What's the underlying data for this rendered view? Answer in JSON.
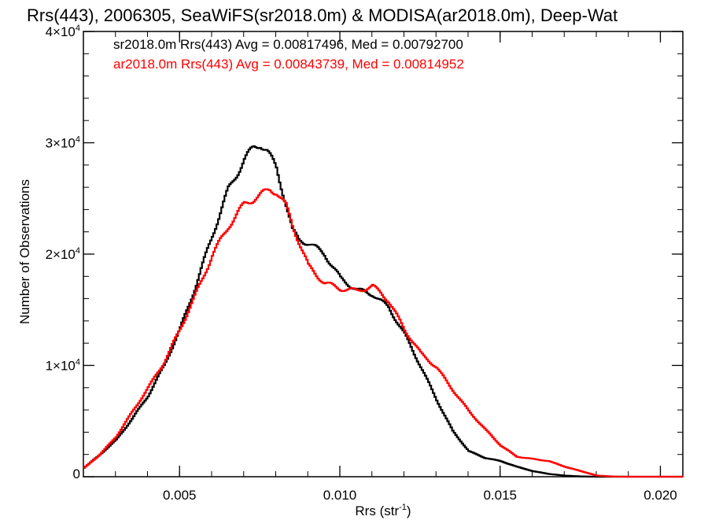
{
  "chart_data": {
    "type": "line",
    "title": "Rrs(443), 2006305, SeaWiFS(sr2018.0m) & MODISA(ar2018.0m), Deep-Wat",
    "xlabel": "Rrs (str",
    "xlabel_sup": "-1",
    "xlabel_tail": ")",
    "ylabel": "Number of Observations",
    "xlim": [
      0.002,
      0.0207
    ],
    "ylim": [
      0,
      40000
    ],
    "x_ticks": [
      {
        "value": 0.005,
        "label": "0.005"
      },
      {
        "value": 0.01,
        "label": "0.010"
      },
      {
        "value": 0.015,
        "label": "0.015"
      },
      {
        "value": 0.02,
        "label": "0.020"
      }
    ],
    "y_ticks": [
      {
        "value": 0,
        "label": "0",
        "sup": ""
      },
      {
        "value": 10000,
        "label": "1×10",
        "sup": "4"
      },
      {
        "value": 20000,
        "label": "2×10",
        "sup": "4"
      },
      {
        "value": 30000,
        "label": "3×10",
        "sup": "4"
      },
      {
        "value": 40000,
        "label": "4×10",
        "sup": "4"
      }
    ],
    "grid": false,
    "series": [
      {
        "name": "sr2018.0m",
        "color": "#000000",
        "annotation": "sr2018.0m Rrs(443) Avg = 0.00817496, Med = 0.00792700",
        "points": [
          [
            0.002,
            800
          ],
          [
            0.0025,
            2000
          ],
          [
            0.003,
            3300
          ],
          [
            0.0035,
            5200
          ],
          [
            0.004,
            7300
          ],
          [
            0.0045,
            10000
          ],
          [
            0.005,
            13300
          ],
          [
            0.0055,
            17300
          ],
          [
            0.006,
            21700
          ],
          [
            0.0065,
            25800
          ],
          [
            0.007,
            28500
          ],
          [
            0.0073,
            29600
          ],
          [
            0.0075,
            29900
          ],
          [
            0.0077,
            29300
          ],
          [
            0.008,
            27700
          ],
          [
            0.0083,
            24500
          ],
          [
            0.0085,
            22100
          ],
          [
            0.0087,
            21300
          ],
          [
            0.009,
            21000
          ],
          [
            0.0095,
            20000
          ],
          [
            0.01,
            17800
          ],
          [
            0.0105,
            16800
          ],
          [
            0.011,
            16400
          ],
          [
            0.0115,
            15200
          ],
          [
            0.012,
            12800
          ],
          [
            0.0125,
            9900
          ],
          [
            0.013,
            6900
          ],
          [
            0.0135,
            4100
          ],
          [
            0.014,
            2300
          ],
          [
            0.0145,
            1700
          ],
          [
            0.015,
            1400
          ],
          [
            0.0155,
            900
          ],
          [
            0.016,
            500
          ],
          [
            0.0165,
            250
          ],
          [
            0.017,
            100
          ],
          [
            0.0175,
            30
          ],
          [
            0.018,
            0
          ],
          [
            0.0207,
            0
          ]
        ]
      },
      {
        "name": "ar2018.0m",
        "color": "#ff0000",
        "annotation": "ar2018.0m Rrs(443) Avg = 0.00843739, Med = 0.00814952",
        "points": [
          [
            0.002,
            800
          ],
          [
            0.0025,
            2000
          ],
          [
            0.003,
            3600
          ],
          [
            0.0035,
            5800
          ],
          [
            0.004,
            8000
          ],
          [
            0.0045,
            10300
          ],
          [
            0.005,
            13300
          ],
          [
            0.0055,
            16500
          ],
          [
            0.006,
            19900
          ],
          [
            0.0065,
            22500
          ],
          [
            0.007,
            24500
          ],
          [
            0.0075,
            25300
          ],
          [
            0.0078,
            25800
          ],
          [
            0.008,
            25600
          ],
          [
            0.0083,
            24300
          ],
          [
            0.0085,
            22600
          ],
          [
            0.009,
            18900
          ],
          [
            0.0095,
            17400
          ],
          [
            0.01,
            16900
          ],
          [
            0.0105,
            16700
          ],
          [
            0.011,
            17100
          ],
          [
            0.0113,
            16400
          ],
          [
            0.0115,
            15800
          ],
          [
            0.012,
            13200
          ],
          [
            0.0125,
            11100
          ],
          [
            0.013,
            9800
          ],
          [
            0.0135,
            7800
          ],
          [
            0.014,
            5900
          ],
          [
            0.0145,
            4300
          ],
          [
            0.015,
            2800
          ],
          [
            0.0155,
            1800
          ],
          [
            0.016,
            1600
          ],
          [
            0.0165,
            1400
          ],
          [
            0.017,
            900
          ],
          [
            0.0175,
            500
          ],
          [
            0.018,
            100
          ],
          [
            0.0185,
            20
          ],
          [
            0.019,
            0
          ],
          [
            0.0207,
            0
          ]
        ]
      }
    ]
  }
}
